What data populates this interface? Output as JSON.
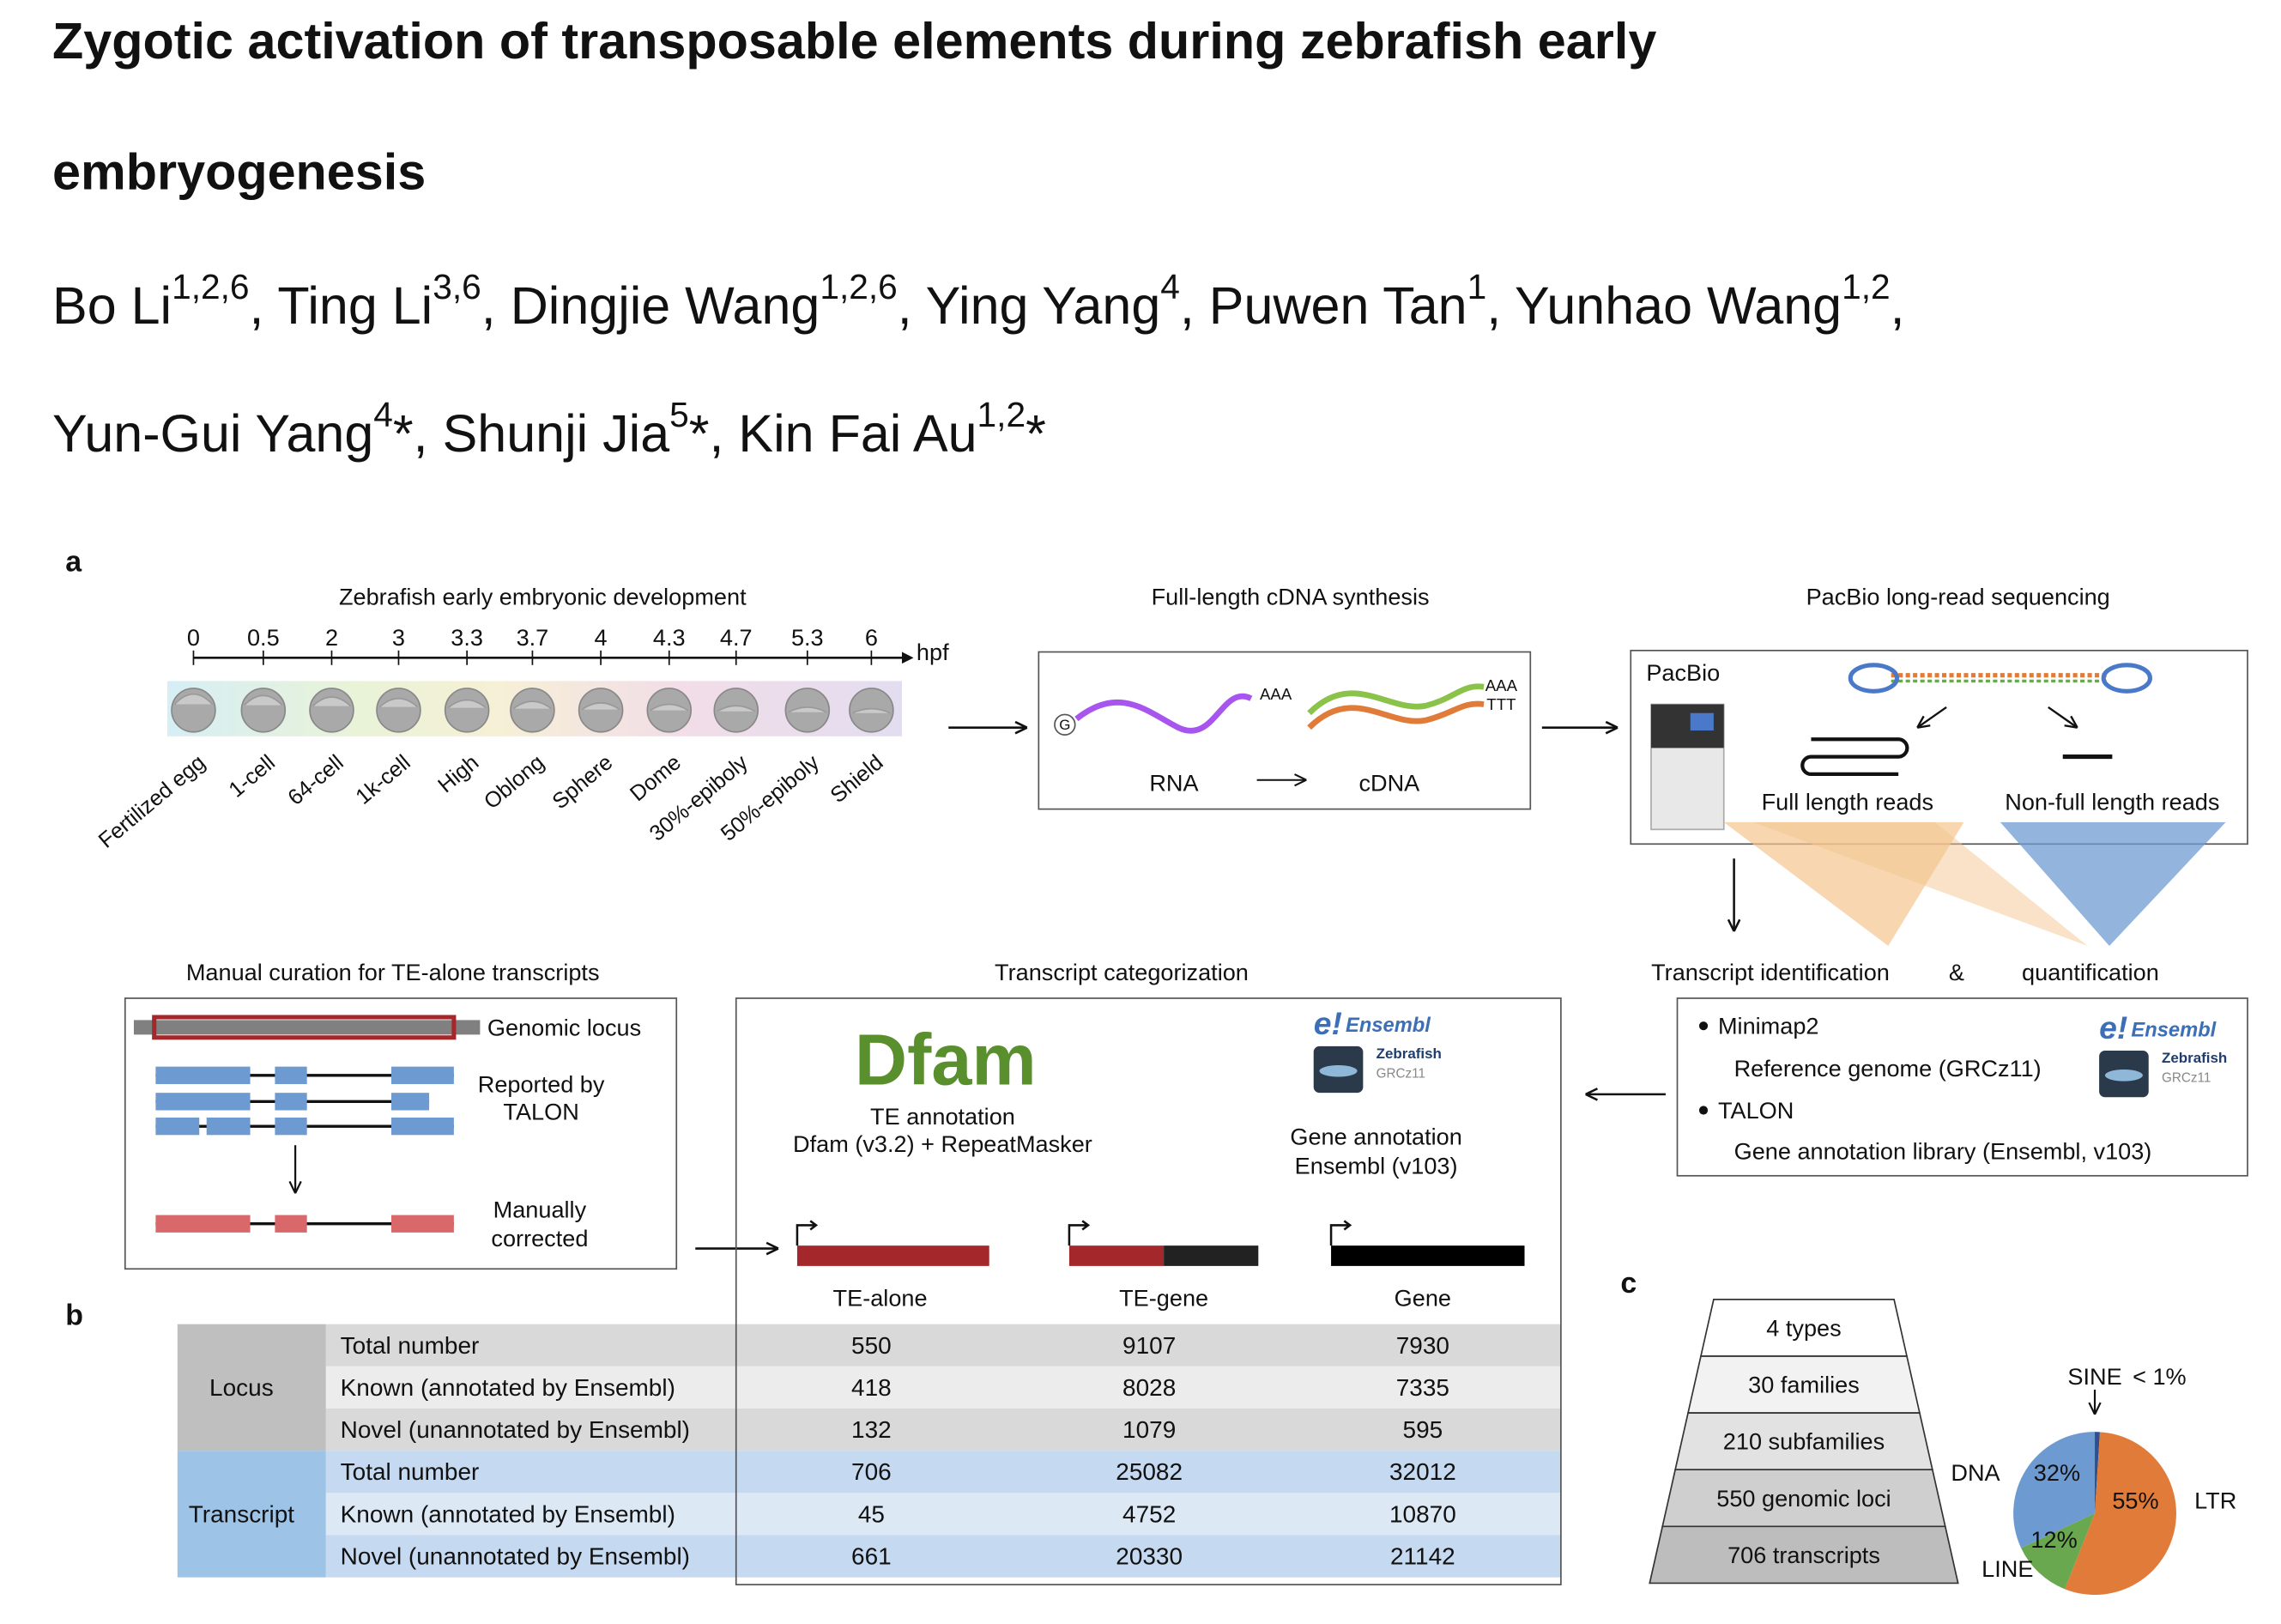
{
  "title": [
    "Zygotic activation of transposable elements during zebrafish early",
    "embryogenesis"
  ],
  "authors": [
    [
      {
        "name": "Bo Li",
        "sup": "1,2,6"
      },
      {
        "name": ", Ting Li",
        "sup": "3,6"
      },
      {
        "name": ", Dingjie Wang",
        "sup": "1,2,6"
      },
      {
        "name": ", Ying Yang",
        "sup": "4"
      },
      {
        "name": ", Puwen Tan",
        "sup": "1"
      },
      {
        "name": ", Yunhao Wang",
        "sup": "1,2"
      },
      {
        "name": ","
      }
    ],
    [
      {
        "name": "Yun-Gui Yang",
        "sup": "4"
      },
      {
        "name": "*, Shunji Jia",
        "sup": "5"
      },
      {
        "name": "*, Kin Fai Au",
        "sup": "1,2"
      },
      {
        "name": "*"
      }
    ]
  ],
  "panel_labels": [
    "a",
    "b",
    "c"
  ],
  "development": {
    "title": "Zebrafish early embryonic development",
    "unit": "hpf",
    "times": [
      "0",
      "0.5",
      "2",
      "3",
      "3.3",
      "3.7",
      "4",
      "4.3",
      "4.7",
      "5.3",
      "6"
    ],
    "stages": [
      "Fertilized egg",
      "1-cell",
      "64-cell",
      "1k-cell",
      "High",
      "Oblong",
      "Sphere",
      "Dome",
      "30%-epiboly",
      "50%-epiboly",
      "Shield"
    ]
  },
  "cdna": {
    "title": "Full-length cDNA synthesis",
    "cap": "G",
    "poly_a": "AAA",
    "poly_t": "TTT",
    "rna": "RNA",
    "cdna": "cDNA"
  },
  "sequencing": {
    "title": "PacBio long-read sequencing",
    "machine": "PacBio",
    "full": "Full length reads",
    "nonfull": "Non-full length reads"
  },
  "identification": {
    "title": [
      "Transcript identification",
      "&",
      "quantification"
    ],
    "items": [
      {
        "tool": "Minimap2",
        "detail": "Reference genome (GRCz11)"
      },
      {
        "tool": "TALON",
        "detail": "Gene annotation library (Ensembl, v103)"
      }
    ]
  },
  "ensembl": {
    "mark": "e!",
    "logo": "Ensembl",
    "species": "Zebrafish",
    "assembly": "GRCz11"
  },
  "categorization": {
    "title": "Transcript categorization",
    "dfam_logo": "Dfam",
    "te_annotation": [
      "TE annotation",
      "Dfam (v3.2) + RepeatMasker"
    ],
    "gene_annotation": [
      "Gene annotation",
      "Ensembl (v103)"
    ],
    "categories": [
      "TE-alone",
      "TE-gene",
      "Gene"
    ]
  },
  "curation": {
    "title": "Manual curation for TE-alone transcripts",
    "locus": "Genomic locus",
    "talon": [
      "Reported by",
      "TALON"
    ],
    "corrected": [
      "Manually",
      "corrected"
    ]
  },
  "table": {
    "groups": [
      {
        "name": "Locus",
        "rows": [
          [
            "Total number",
            "550",
            "9107",
            "7930"
          ],
          [
            "Known (annotated by Ensembl)",
            "418",
            "8028",
            "7335"
          ],
          [
            "Novel (unannotated by Ensembl)",
            "132",
            "1079",
            "595"
          ]
        ]
      },
      {
        "name": "Transcript",
        "rows": [
          [
            "Total number",
            "706",
            "25082",
            "32012"
          ],
          [
            "Known (annotated by Ensembl)",
            "45",
            "4752",
            "10870"
          ],
          [
            "Novel (unannotated by Ensembl)",
            "661",
            "20330",
            "21142"
          ]
        ]
      }
    ]
  },
  "pyramid": [
    "4 types",
    "30 families",
    "210 subfamilies",
    "550 genomic loci",
    "706 transcripts"
  ],
  "pie": {
    "slices": [
      {
        "name": "SINE",
        "value": 1,
        "label": "< 1%",
        "color": "#2f4f8f"
      },
      {
        "name": "LTR",
        "value": 55,
        "label": "55%",
        "color": "#e07b39"
      },
      {
        "name": "LINE",
        "value": 12,
        "label": "12%",
        "color": "#6aa84f"
      },
      {
        "name": "DNA",
        "value": 32,
        "label": "32%",
        "color": "#6d9bd1"
      }
    ]
  }
}
